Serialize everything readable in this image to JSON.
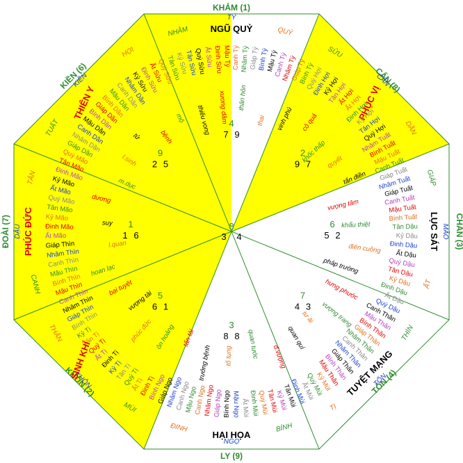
{
  "directions": [
    {
      "id": "kham",
      "label": "KHẢM (1)"
    },
    {
      "id": "can",
      "label": "CẤN (8)"
    },
    {
      "id": "chan",
      "label": "CHẤN (3)"
    },
    {
      "id": "ton",
      "label": "TỐN (4)"
    },
    {
      "id": "ly",
      "label": "LY (9)"
    },
    {
      "id": "khon",
      "label": "KHÔN (2)"
    },
    {
      "id": "doai",
      "label": "ĐOÀI (7)"
    },
    {
      "id": "kien",
      "label": "KIỀN (6)"
    }
  ],
  "stars": [
    {
      "id": "ngu-quy",
      "label": "NGŨ QUỶ"
    },
    {
      "id": "phuc-vi",
      "label": "PHỤC VỊ"
    },
    {
      "id": "luc-sat",
      "label": "LỤC SÁT"
    },
    {
      "id": "tuyet-mang",
      "label": "TUYỆT MẠNG"
    },
    {
      "id": "hai-hoa",
      "label": "HẠI HỌA"
    },
    {
      "id": "sinh-khi",
      "label": "SINH KHÍ"
    },
    {
      "id": "phuc-duc",
      "label": "PHÚC ĐỨC"
    },
    {
      "id": "thien-y",
      "label": "THIÊN Y"
    }
  ],
  "mountains": [
    {
      "id": "ty-n",
      "label": "TÝ"
    },
    {
      "id": "nham",
      "label": "NHÂM"
    },
    {
      "id": "quy",
      "label": "QUÝ"
    },
    {
      "id": "suu",
      "label": "SỬU"
    },
    {
      "id": "can-m",
      "label": "CẤN"
    },
    {
      "id": "dan",
      "label": "DẦN"
    },
    {
      "id": "giap",
      "label": "GIÁP"
    },
    {
      "id": "mao",
      "label": "MÃO"
    },
    {
      "id": "at",
      "label": "ẤT"
    },
    {
      "id": "thin",
      "label": "THÌN"
    },
    {
      "id": "ton-m",
      "label": "TỐN"
    },
    {
      "id": "ti",
      "label": "TỊ"
    },
    {
      "id": "ngo",
      "label": "NGỌ"
    },
    {
      "id": "dinh",
      "label": "ĐINH"
    },
    {
      "id": "binh",
      "label": "BÍNH"
    },
    {
      "id": "mui",
      "label": "MÙI"
    },
    {
      "id": "khon-m",
      "label": "KHÔN"
    },
    {
      "id": "than",
      "label": "THÂN"
    },
    {
      "id": "canh",
      "label": "CANH"
    },
    {
      "id": "dau",
      "label": "DẬU"
    },
    {
      "id": "tan",
      "label": "TÂN"
    },
    {
      "id": "tuat",
      "label": "TUẤT"
    },
    {
      "id": "kien-m",
      "label": "KIỀN"
    },
    {
      "id": "hoi",
      "label": "HỢI"
    }
  ],
  "center": {
    "top": "8",
    "left": "3",
    "right": "4"
  },
  "numbers": [
    {
      "id": "n-kham",
      "mid": "4",
      "l": "7",
      "r": "9"
    },
    {
      "id": "n-can",
      "mid": "2",
      "l": "9",
      "r": "7"
    },
    {
      "id": "n-chan",
      "mid": "6",
      "l": "5",
      "r": "2"
    },
    {
      "id": "n-ton",
      "mid": "7",
      "l": "4",
      "r": "3"
    },
    {
      "id": "n-ly",
      "mid": "3",
      "l": "8",
      "r": "8"
    },
    {
      "id": "n-khon",
      "mid": "5",
      "l": "6",
      "r": "1"
    },
    {
      "id": "n-doai",
      "mid": "1",
      "l": "1",
      "r": "6"
    },
    {
      "id": "n-kien",
      "mid": "9",
      "l": "2",
      "r": "5"
    }
  ],
  "stars_list": [
    {
      "id": "s1",
      "label": "thiếu vong"
    },
    {
      "id": "s2",
      "label": "xương dâm"
    },
    {
      "id": "s3",
      "label": "thân hôn"
    },
    {
      "id": "s4",
      "label": "thai"
    },
    {
      "id": "s5",
      "label": "vinh phú"
    },
    {
      "id": "s6",
      "label": "cô quả"
    },
    {
      "id": "s7",
      "label": "khốc thấp"
    },
    {
      "id": "s8",
      "label": "quyết"
    },
    {
      "id": "s9",
      "label": "tấn điền"
    },
    {
      "id": "s10",
      "label": "vượng tâm"
    },
    {
      "id": "s11",
      "label": "khẩu thiệt"
    },
    {
      "id": "s12",
      "label": "điên cuồng"
    },
    {
      "id": "s13",
      "label": "pháp trường"
    },
    {
      "id": "s14",
      "label": "hưng phước"
    },
    {
      "id": "s15",
      "label": "vượng trang"
    },
    {
      "id": "s16",
      "label": "tư ài"
    },
    {
      "id": "s17",
      "label": "quan quí"
    },
    {
      "id": "s18",
      "label": "đ.vượng"
    },
    {
      "id": "s19",
      "label": "quan tước"
    },
    {
      "id": "s20",
      "label": "tố tụng"
    },
    {
      "id": "s21",
      "label": "trưởng bệnh"
    },
    {
      "id": "s22",
      "label": "tấn tài"
    },
    {
      "id": "s23",
      "label": "ôn hoàng"
    },
    {
      "id": "s24",
      "label": "phúc đức"
    },
    {
      "id": "s25",
      "label": "vượng tài"
    },
    {
      "id": "s26",
      "label": "bại tuyệt"
    },
    {
      "id": "s27",
      "label": "hoan lạc"
    },
    {
      "id": "s28",
      "label": "l.quan"
    },
    {
      "id": "s29",
      "label": "suy"
    },
    {
      "id": "s30",
      "label": "dương"
    },
    {
      "id": "s31",
      "label": "m.dục"
    },
    {
      "id": "s32",
      "label": "l.sinh"
    },
    {
      "id": "s33",
      "label": "tử"
    },
    {
      "id": "s34",
      "label": "bệnh"
    },
    {
      "id": "s35",
      "label": "mộ"
    }
  ],
  "ganzhi": [
    "Mậu Tý",
    "Canh Tý",
    "Nhâm Tý",
    "Giáp Tý",
    "Bính Tý",
    "Mậu Tý",
    "Canh Tý",
    "Nhâm Tý",
    "Giáp Tý",
    "Bính Tý",
    "Quý Hợi",
    "Đinh Hợi",
    "Kỷ Hợi",
    "Tân Hợi",
    "Ất Hợi",
    "Ất Hợi",
    "Đinh Hợi",
    "Kỷ Hợi",
    "Tân Hợi",
    "Quý Hợi",
    "Nhâm Tuất",
    "Bính Tuất",
    "Mậu Tuất",
    "Canh Tuất",
    "Giáp Tuất",
    "Nhâm Tuất",
    "Giáp Tuất",
    "Canh Tuất",
    "Mậu Tuất",
    "Bính Tuất",
    "Tân Dậu",
    "Kỷ Dậu",
    "Đinh Dậu",
    "Ất Dậu",
    "Quý Dậu",
    "Tân Dậu",
    "Kỷ Dậu",
    "Đinh Dậu",
    "Ất Dậu",
    "Quý Dậu",
    "Canh Thân",
    "Mậu Thân",
    "Bính Thân",
    "Giáp Thân",
    "Nhâm Thân",
    "Canh Thân",
    "Nhâm Thân",
    "Giáp Thân",
    "Bính Thân",
    "Mậu Thân",
    "Kỷ Mùi",
    "Quý Mùi",
    "Ất Mùi",
    "Đinh Mùi",
    "Tân Mùi",
    "Kỷ Mùi",
    "Tân Mùi",
    "Quý Mùi",
    "Đinh Mùi",
    "Ất Mùi",
    "Mậu Ngọ",
    "Bính Ngọ",
    "Giáp Ngọ",
    "Nhâm Ngọ",
    "Canh Ngọ",
    "Mậu Ngọ",
    "Canh Ngọ",
    "Nhâm Ngọ",
    "Giáp Ngọ",
    "Bính Ngọ",
    "Đinh Tị",
    "Ất Tị",
    "Quý Tị",
    "Tân Tị",
    "Kỷ Tị",
    "Đinh Tị",
    "Ất Tị",
    "Quý Tị",
    "Tân Tị",
    "Kỷ Tị",
    "Bính Thìn",
    "Giáp Thìn",
    "Nhâm Thìn",
    "Canh Thìn",
    "Mậu Thìn",
    "Bính Thìn",
    "Mậu Thìn",
    "Canh Thìn",
    "Nhâm Thìn",
    "Giáp Thìn",
    "Ất Mão",
    "Đinh Mão",
    "Kỷ Mão",
    "Tân Mão",
    "Quý Mão",
    "Ất Mão",
    "Kỷ Mão",
    "Đinh Mão",
    "Tân Mão",
    "Quý Mão",
    "Giáp Dần",
    "Nhâm Dần",
    "Canh Dần",
    "Mậu Dần",
    "Bính Dần",
    "Giáp Dần",
    "Bính Dần",
    "Mậu Dần",
    "Canh Dần",
    "Nhâm Dần",
    "Kỷ Sửu",
    "Đinh Sửu",
    "Ất Sửu",
    "Quý Sửu",
    "Tân Sửu",
    "Kỷ Sửu",
    "Tân Sửu",
    "Quý Sửu",
    "Ất Sửu",
    "Đinh Sửu"
  ],
  "colors": {
    "yellow": "#ffff00",
    "green": "#2e8b2e",
    "red": "#e00000",
    "blue": "#1a3fd0",
    "orange": "#e07020",
    "gray": "#888888",
    "purple": "#b040c0",
    "black": "#000000"
  }
}
